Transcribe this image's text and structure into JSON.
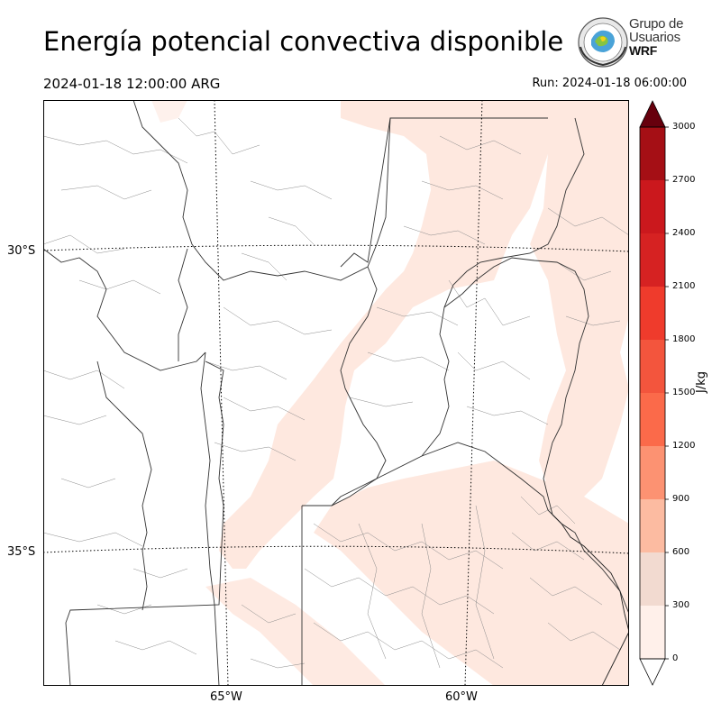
{
  "header": {
    "title": "Energía potencial convectiva disponible",
    "valid_time": "2024-01-18 12:00:00 ARG",
    "run_time": "Run: 2024-01-18 06:00:00"
  },
  "logo": {
    "line1": "Grupo de",
    "line2": "Usuarios",
    "brand": "WRF"
  },
  "map": {
    "lat_labels": [
      "30°S",
      "35°S"
    ],
    "lon_labels": [
      "65°W",
      "60°W"
    ],
    "cape_shading_color": "#fee8df",
    "border_color": "#333333"
  },
  "colorbar": {
    "unit": "J/kg",
    "ticks": [
      "0",
      "300",
      "600",
      "900",
      "1200",
      "1500",
      "1800",
      "2100",
      "2400",
      "2700",
      "3000"
    ],
    "colors": [
      "#fff0ea",
      "#f2dad0",
      "#fcbba1",
      "#fc9272",
      "#fb6a4a",
      "#f3553d",
      "#ef3b2c",
      "#d62222",
      "#cb181d",
      "#a50f15",
      "#7a0910"
    ],
    "over_color": "#67000d"
  }
}
